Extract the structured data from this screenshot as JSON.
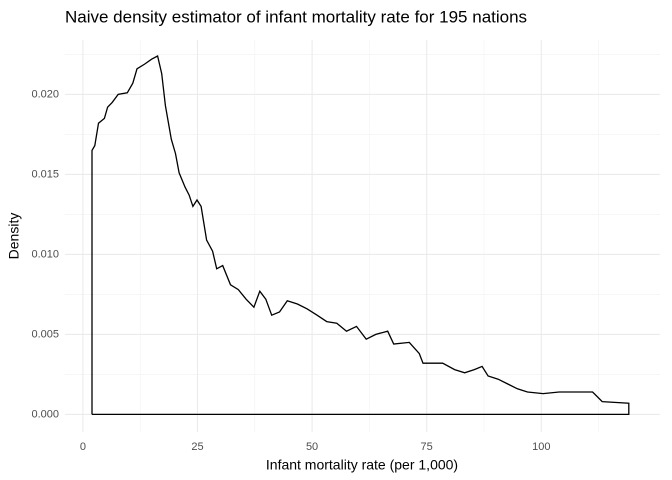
{
  "chart_data": {
    "type": "line",
    "title": "Naive density estimator of infant mortality rate for 195 nations",
    "x_label": "Infant mortality rate (per 1,000)",
    "y_label": "Density",
    "x": [
      2,
      2,
      2.6,
      3.4,
      4.7,
      5.4,
      6.4,
      7.7,
      9.7,
      10.9,
      11.8,
      13.5,
      15,
      16.3,
      17.2,
      18,
      19.3,
      20.2,
      21,
      22.3,
      23.2,
      24,
      24.9,
      25.8,
      27,
      28.3,
      29.2,
      30.5,
      32.2,
      33.9,
      35.6,
      37.3,
      38.6,
      39.9,
      41.2,
      42.9,
      44.6,
      46.8,
      48.9,
      51.1,
      53.2,
      55.4,
      57.5,
      59.7,
      61.8,
      63.9,
      66.5,
      67.8,
      71.2,
      73.4,
      74.2,
      78.5,
      81.1,
      83.3,
      85.4,
      87.1,
      88.4,
      90.6,
      92.7,
      94.8,
      97,
      100.4,
      103.9,
      111.2,
      113.3,
      119.1,
      119.1,
      2
    ],
    "series": [
      {
        "name": "Density",
        "color": "#000000",
        "values": [
          0,
          0.0165,
          0.0168,
          0.0182,
          0.0185,
          0.0192,
          0.0195,
          0.02,
          0.0201,
          0.0207,
          0.0216,
          0.0219,
          0.0222,
          0.0224,
          0.0213,
          0.0193,
          0.0172,
          0.0163,
          0.0151,
          0.0142,
          0.0137,
          0.013,
          0.0134,
          0.013,
          0.0109,
          0.0102,
          0.0091,
          0.0093,
          0.0081,
          0.0078,
          0.0072,
          0.0067,
          0.0077,
          0.0072,
          0.0062,
          0.0064,
          0.0071,
          0.0069,
          0.0066,
          0.0062,
          0.0058,
          0.0057,
          0.0052,
          0.0055,
          0.0047,
          0.005,
          0.0052,
          0.0044,
          0.0045,
          0.0038,
          0.0032,
          0.0032,
          0.0028,
          0.0026,
          0.0028,
          0.003,
          0.0024,
          0.0022,
          0.0019,
          0.0016,
          0.0014,
          0.0013,
          0.0014,
          0.0014,
          0.0008,
          0.0007,
          0,
          0
        ]
      }
    ],
    "xlim": [
      -3.9,
      125.9
    ],
    "ylim": [
      -0.0011,
      0.0234
    ],
    "xticks": [
      0,
      25,
      50,
      75,
      100
    ],
    "yticks": [
      {
        "value": 0,
        "label": "0.000"
      },
      {
        "value": 0.005,
        "label": "0.005"
      },
      {
        "value": 0.01,
        "label": "0.010"
      },
      {
        "value": 0.015,
        "label": "0.015"
      },
      {
        "value": 0.02,
        "label": "0.020"
      }
    ],
    "xminor": [
      12.5,
      37.5,
      62.5,
      87.5,
      112.5
    ],
    "yminor": [
      0.0025,
      0.0075,
      0.0125,
      0.0175,
      0.0225
    ],
    "grid": true
  }
}
